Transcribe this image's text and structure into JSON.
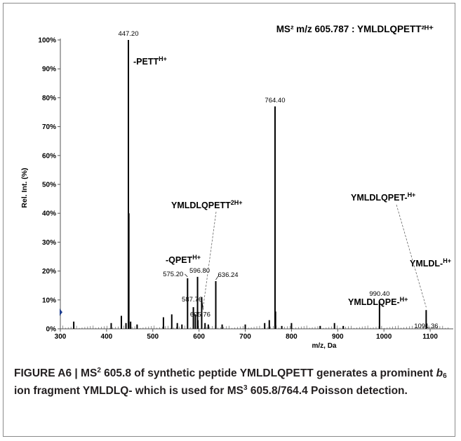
{
  "chart_data": {
    "type": "bar",
    "title": "MS²  m/z 605.787 : YMLDLQPETT²ᴴ⁺",
    "xlabel": "m/z, Da",
    "ylabel": "Rel. Int. (%)",
    "xlim": [
      300,
      1150
    ],
    "ylim": [
      0,
      100
    ],
    "x_ticks": [
      "300",
      "400",
      "500",
      "600",
      "700",
      "800",
      "900",
      "1000",
      "1100"
    ],
    "y_ticks": [
      "0%",
      "10%",
      "20%",
      "30%",
      "40%",
      "50%",
      "60%",
      "70%",
      "80%",
      "90%",
      "100%"
    ],
    "series": [
      {
        "x": [
          329,
          410,
          432,
          442,
          447.2,
          448.2,
          452,
          466,
          523,
          541,
          553,
          563,
          575.2,
          587.76,
          592,
          596.8,
          597.5,
          605.76,
          613,
          620,
          636.24,
          650,
          700,
          742,
          752,
          764.4,
          765.5,
          779,
          800,
          862,
          893,
          912,
          990.4,
          1091.36
        ],
        "y": [
          2.5,
          2,
          4.5,
          2,
          100,
          40,
          2.5,
          1.5,
          4,
          5,
          2,
          1.5,
          17.5,
          7.5,
          5,
          18,
          3,
          11,
          2,
          1.5,
          16.5,
          1.5,
          1.5,
          2,
          3,
          77,
          6,
          1,
          2,
          1,
          2,
          1,
          9.5,
          6.5
        ]
      }
    ],
    "peak_labels": [
      {
        "text": "447.20",
        "x": 447.2,
        "y": 100
      },
      {
        "text": "764.40",
        "x": 764.4,
        "y": 77
      },
      {
        "text": "575.20",
        "x": 575.2,
        "y": 17.5
      },
      {
        "text": "596.80",
        "x": 596.8,
        "y": 18
      },
      {
        "text": "587.76",
        "x": 587.76,
        "y": 7.5
      },
      {
        "text": "605.76",
        "x": 605.76,
        "y": 11
      },
      {
        "text": "636.24",
        "x": 636.24,
        "y": 16.5
      },
      {
        "text": "990.40",
        "x": 990.4,
        "y": 9.5
      },
      {
        "text": "1091.36",
        "x": 1091.36,
        "y": 6.5
      }
    ],
    "fragment_annotations": [
      {
        "text": "-PETT",
        "sup": "H+",
        "x": 447.2
      },
      {
        "text": "YMLDLQ-",
        "sup": "H+",
        "x": 764.4
      },
      {
        "text": "YMLDLQPETT",
        "sup": "2H+",
        "x": 605.76
      },
      {
        "text": "-QPET",
        "sup": "H+",
        "x": 575.2
      },
      {
        "text": "YMLDL-",
        "sup": "H+",
        "x": 636.24
      },
      {
        "text": "YMLDLQPE-",
        "sup": "H+",
        "x": 990.4
      },
      {
        "text": "YMLDLQPET-",
        "sup": "H+",
        "x": 1091.36
      }
    ],
    "grid": false,
    "legend": "none"
  },
  "caption": {
    "part1": "FIGURE A6 | MS",
    "sup1": "2",
    "part2": " 605.8 of synthetic peptide YMLDLQPETT generates a prominent ",
    "b": "b",
    "sub": "6",
    "part3": " ion fragment YMLDLQ- which is used for MS",
    "sup2": "3",
    "part4": " 605.8/764.4 Poisson detection."
  },
  "colors": {
    "peak": "#000000",
    "axis": "#555555",
    "frame": "#8a8a8a",
    "caption_text": "#231f20",
    "marker": "#1f3f8f"
  }
}
